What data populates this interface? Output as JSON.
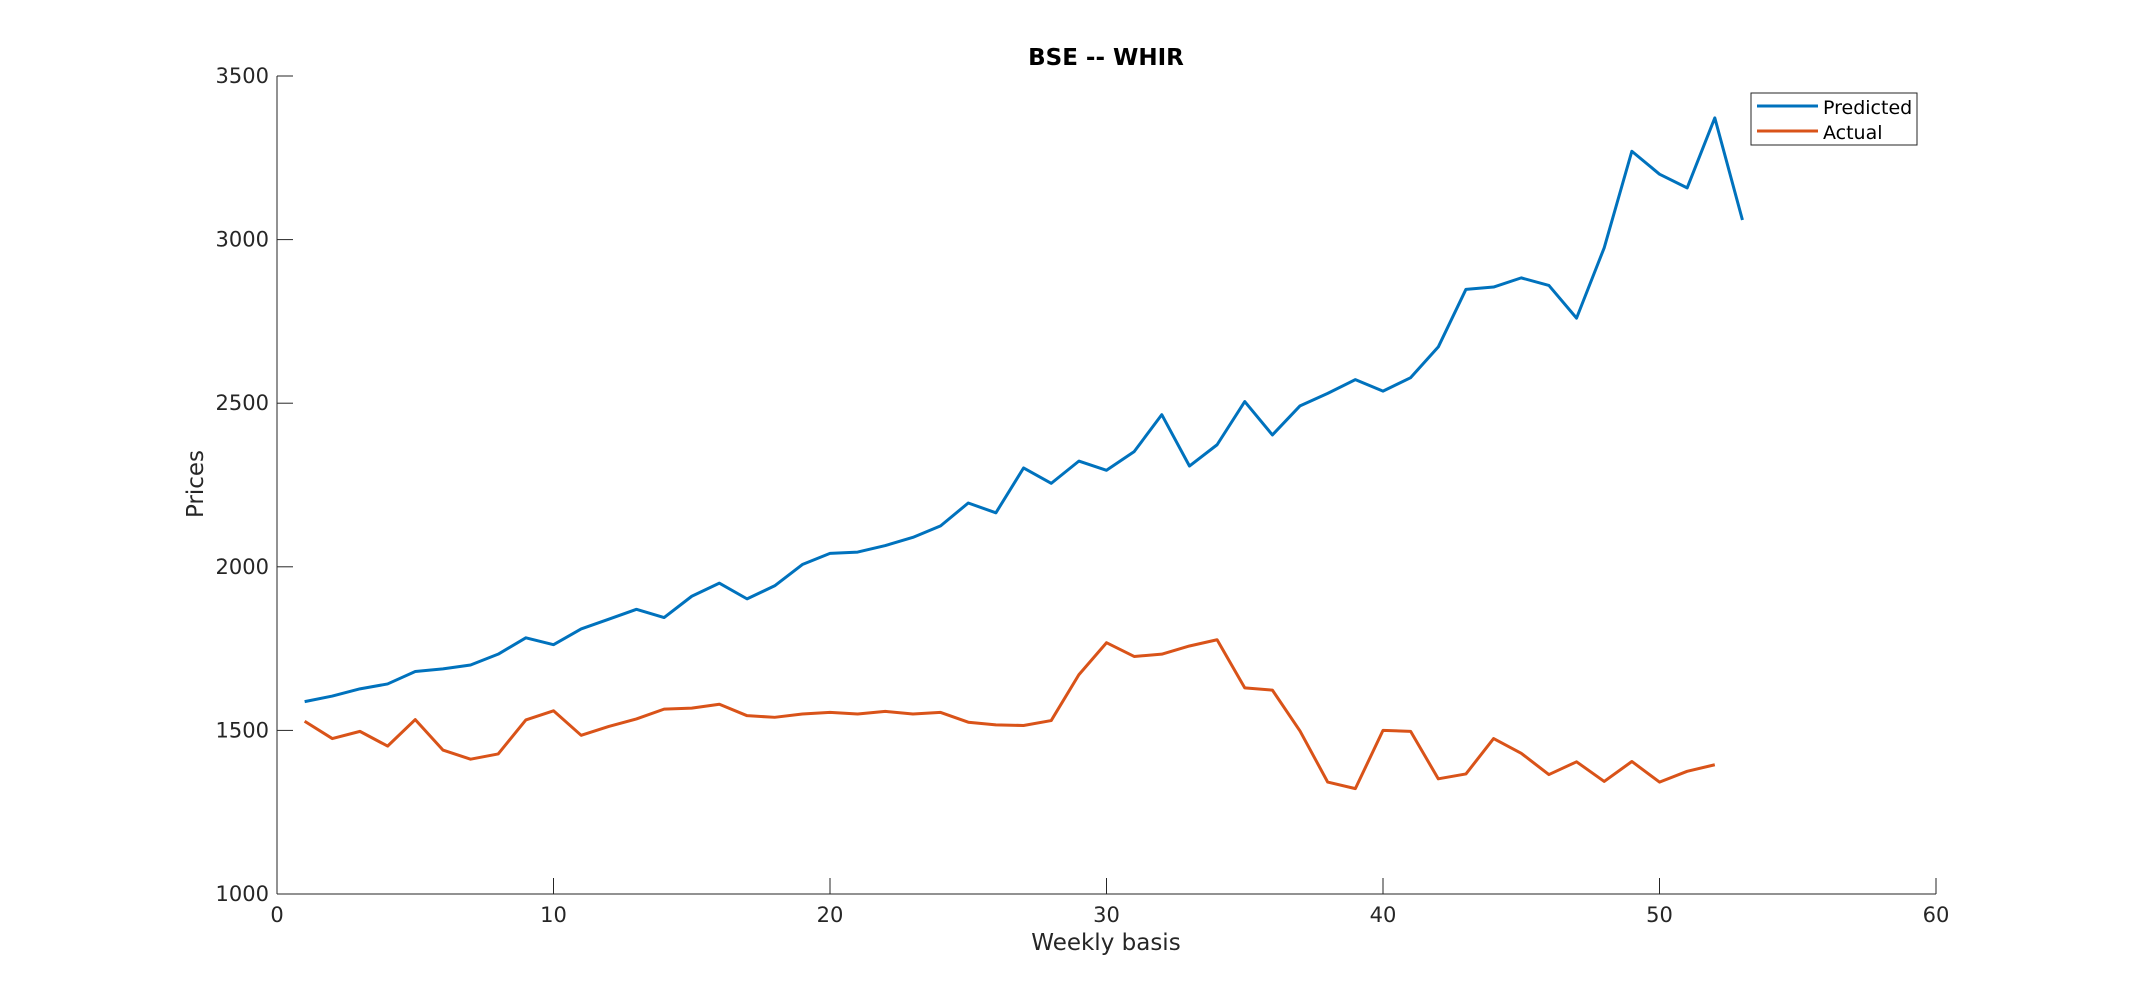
{
  "chart_data": {
    "type": "line",
    "title": "BSE -- WHIR",
    "xlabel": "Weekly basis",
    "ylabel": "Prices",
    "xlim": [
      0,
      60
    ],
    "ylim": [
      1000,
      3500
    ],
    "xticks": [
      "0",
      "10",
      "20",
      "30",
      "40",
      "50",
      "60"
    ],
    "yticks": [
      "1000",
      "1500",
      "2000",
      "2500",
      "3000",
      "3500"
    ],
    "grid": false,
    "legend_position": "top-right",
    "series": [
      {
        "name": "Predicted",
        "color": "#0072BD",
        "x": [
          1,
          2,
          3,
          4,
          5,
          6,
          7,
          8,
          9,
          10,
          11,
          12,
          13,
          14,
          15,
          16,
          17,
          18,
          19,
          20,
          21,
          22,
          23,
          24,
          25,
          26,
          27,
          28,
          29,
          30,
          31,
          32,
          33,
          34,
          35,
          36,
          37,
          38,
          39,
          40,
          41,
          42,
          43,
          44,
          45,
          46,
          47,
          48,
          49,
          50,
          51,
          52,
          53
        ],
        "values": [
          1588,
          1605,
          1627,
          1642,
          1680,
          1688,
          1700,
          1733,
          1783,
          1762,
          1810,
          1840,
          1870,
          1845,
          1910,
          1950,
          1902,
          1942,
          2007,
          2041,
          2045,
          2065,
          2090,
          2125,
          2195,
          2165,
          2302,
          2255,
          2323,
          2295,
          2352,
          2465,
          2308,
          2373,
          2505,
          2403,
          2492,
          2530,
          2572,
          2537,
          2578,
          2672,
          2848,
          2855,
          2883,
          2860,
          2760,
          2975,
          3270,
          3200,
          3158,
          3372,
          3060
        ]
      },
      {
        "name": "Actual",
        "color": "#D95319",
        "x": [
          1,
          2,
          3,
          4,
          5,
          6,
          7,
          8,
          9,
          10,
          11,
          12,
          13,
          14,
          15,
          16,
          17,
          18,
          19,
          20,
          21,
          22,
          23,
          24,
          25,
          26,
          27,
          28,
          29,
          30,
          31,
          32,
          33,
          34,
          35,
          36,
          37,
          38,
          39,
          40,
          41,
          42,
          43,
          44,
          45,
          46,
          47,
          48,
          49,
          50,
          51,
          52
        ],
        "values": [
          1528,
          1475,
          1497,
          1452,
          1533,
          1440,
          1412,
          1428,
          1532,
          1560,
          1485,
          1512,
          1535,
          1565,
          1568,
          1580,
          1545,
          1540,
          1550,
          1555,
          1550,
          1558,
          1550,
          1555,
          1525,
          1517,
          1515,
          1530,
          1670,
          1768,
          1726,
          1733,
          1758,
          1777,
          1630,
          1623,
          1498,
          1342,
          1322,
          1500,
          1497,
          1352,
          1367,
          1475,
          1430,
          1365,
          1404,
          1344,
          1405,
          1342,
          1375,
          1395
        ]
      }
    ]
  }
}
